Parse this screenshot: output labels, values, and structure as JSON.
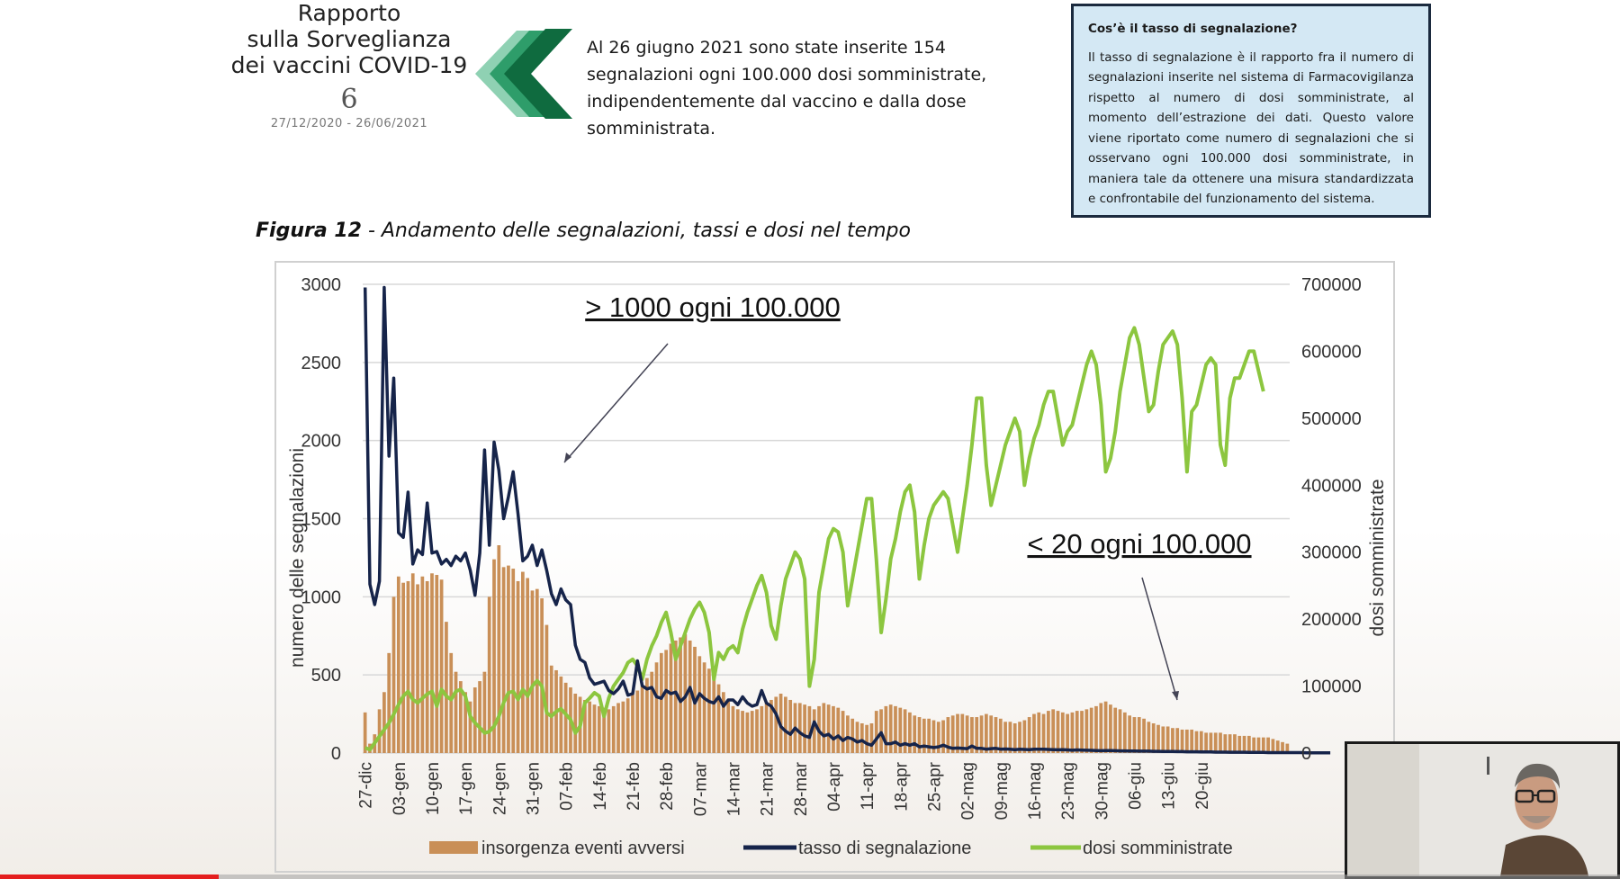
{
  "logo": {
    "line1": "Rapporto",
    "line2": "sulla Sorveglianza",
    "line3": "dei vaccini COVID-19",
    "number": "6",
    "dates": "27/12/2020 - 26/06/2021"
  },
  "headline": "Al 26 giugno 2021 sono state inserite 154 segnalazioni ogni 100.000 dosi somministrate, indipendentemente dal vaccino e dalla dose somministrata.",
  "infobox": {
    "title": "Cos’è il tasso di segnalazione?",
    "body": "Il tasso di segnalazione è il rapporto fra il numero di segnalazioni inserite nel sistema di Farmacovigilanza rispetto al numero di dosi somministrate, al momento dell’estrazione dei dati. Questo valore viene riportato come numero di segnalazioni che si osservano ogni 100.000 dosi somministrate, in maniera tale da ottenere una misura standardizzata e confrontabile del funzionamento del sistema."
  },
  "figure": {
    "label": "Figura 12",
    "title": " - Andamento delle segnalazioni, tassi e dosi nel tempo"
  },
  "video": {
    "progress": 0.135
  },
  "colors": {
    "bars": "#c98f57",
    "rate": "#16244a",
    "doses": "#8cc63f",
    "chevron_dark": "#0f6b3f",
    "chevron_mid": "#2e9d6a",
    "chevron_light": "#8fd1b3"
  },
  "chart_data": {
    "type": "bar",
    "title": "",
    "ylabel": "numero delle segnalazioni",
    "y2label": "dosi somministrate",
    "ylim": [
      0,
      3000
    ],
    "y2lim": [
      0,
      700000
    ],
    "yticks": [
      0,
      500,
      1000,
      1500,
      2000,
      2500,
      3000
    ],
    "y2ticks": [
      0,
      100000,
      200000,
      300000,
      400000,
      500000,
      600000,
      700000
    ],
    "grid": true,
    "legend_position": "bottom",
    "x_labels": [
      "27-dic",
      "03-gen",
      "10-gen",
      "17-gen",
      "24-gen",
      "31-gen",
      "07-feb",
      "14-feb",
      "21-feb",
      "28-feb",
      "07-mar",
      "14-mar",
      "21-mar",
      "28-mar",
      "04-apr",
      "11-apr",
      "18-apr",
      "25-apr",
      "02-mag",
      "09-mag",
      "16-mag",
      "23-mag",
      "30-mag",
      "06-giu",
      "13-giu",
      "20-giu"
    ],
    "annotations": [
      "> 1000 ogni 100.000",
      "< 20 ogni 100.000"
    ],
    "series": [
      {
        "name": "insorgenza eventi avversi",
        "type": "bar",
        "axis": "left",
        "values": [
          260,
          60,
          120,
          280,
          390,
          640,
          1000,
          1130,
          1090,
          1100,
          1150,
          1080,
          1130,
          1100,
          1150,
          1140,
          1110,
          840,
          640,
          520,
          460,
          390,
          330,
          420,
          460,
          520,
          1000,
          1240,
          1330,
          1190,
          1200,
          1180,
          1100,
          1160,
          1120,
          1040,
          1050,
          990,
          820,
          560,
          530,
          490,
          450,
          420,
          380,
          360,
          340,
          330,
          310,
          300,
          290,
          280,
          300,
          320,
          330,
          350,
          380,
          400,
          430,
          480,
          520,
          580,
          640,
          660,
          700,
          720,
          740,
          760,
          720,
          680,
          620,
          580,
          540,
          480,
          440,
          390,
          330,
          300,
          280,
          270,
          260,
          270,
          280,
          300,
          320,
          340,
          360,
          380,
          360,
          340,
          320,
          320,
          310,
          300,
          280,
          300,
          320,
          310,
          300,
          290,
          270,
          240,
          220,
          200,
          190,
          180,
          190,
          270,
          280,
          300,
          310,
          300,
          290,
          280,
          260,
          240,
          230,
          220,
          220,
          210,
          200,
          210,
          230,
          240,
          250,
          250,
          240,
          230,
          230,
          240,
          250,
          240,
          230,
          220,
          200,
          200,
          190,
          200,
          210,
          230,
          250,
          260,
          250,
          270,
          280,
          270,
          260,
          250,
          260,
          270,
          270,
          280,
          290,
          300,
          320,
          330,
          310,
          290,
          280,
          260,
          240,
          230,
          230,
          220,
          200,
          190,
          180,
          170,
          170,
          160,
          160,
          150,
          150,
          150,
          140,
          140,
          130,
          130,
          130,
          130,
          120,
          120,
          120,
          110,
          110,
          110,
          100,
          100,
          100,
          100,
          90,
          80,
          70,
          60
        ]
      },
      {
        "name": "tasso di segnalazione",
        "type": "line",
        "axis": "left",
        "values": [
          2980,
          1080,
          950,
          1100,
          2980,
          1900,
          2400,
          1410,
          1380,
          1670,
          1210,
          1300,
          1270,
          1600,
          1280,
          1290,
          1210,
          1240,
          1200,
          1260,
          1230,
          1280,
          1170,
          1010,
          1280,
          1940,
          1330,
          1990,
          1810,
          1500,
          1640,
          1800,
          1530,
          1230,
          1260,
          1330,
          1200,
          1300,
          1170,
          1020,
          950,
          1050,
          980,
          950,
          690,
          600,
          580,
          480,
          440,
          450,
          460,
          400,
          380,
          410,
          460,
          370,
          380,
          590,
          430,
          410,
          420,
          360,
          350,
          400,
          380,
          390,
          330,
          360,
          420,
          320,
          380,
          350,
          330,
          320,
          360,
          300,
          340,
          340,
          310,
          360,
          320,
          300,
          310,
          400,
          320,
          300,
          250,
          170,
          140,
          120,
          160,
          130,
          110,
          100,
          200,
          140,
          110,
          120,
          90,
          110,
          80,
          100,
          90,
          70,
          80,
          60,
          50,
          90,
          130,
          60,
          60,
          70,
          50,
          60,
          50,
          60,
          40,
          45,
          40,
          35,
          40,
          50,
          38,
          30,
          32,
          30,
          28,
          45,
          30,
          30,
          25,
          28,
          30,
          25,
          26,
          24,
          22,
          25,
          23,
          22,
          24,
          25,
          24,
          23,
          22,
          21,
          22,
          20,
          18,
          20,
          19,
          18,
          17,
          16,
          15,
          16,
          16,
          15,
          14,
          14,
          13,
          13,
          12,
          12,
          12,
          11,
          11,
          10,
          10,
          10,
          9,
          9,
          8,
          8,
          8,
          7,
          7,
          7,
          6,
          6,
          6,
          5,
          5,
          5,
          5,
          4,
          4,
          4,
          4,
          3,
          3,
          3,
          3,
          3,
          3,
          3,
          3,
          2,
          2,
          2,
          2,
          2,
          2
        ]
      },
      {
        "name": "dosi somministrate",
        "type": "line",
        "axis": "right",
        "values": [
          8000,
          5000,
          15000,
          25000,
          35000,
          45000,
          58000,
          72000,
          85000,
          92000,
          80000,
          75000,
          82000,
          88000,
          92000,
          70000,
          95000,
          85000,
          80000,
          92000,
          95000,
          85000,
          55000,
          45000,
          38000,
          30000,
          32000,
          40000,
          55000,
          75000,
          90000,
          92000,
          80000,
          95000,
          85000,
          100000,
          108000,
          100000,
          60000,
          55000,
          62000,
          66000,
          58000,
          50000,
          30000,
          40000,
          75000,
          82000,
          90000,
          85000,
          55000,
          82000,
          100000,
          110000,
          120000,
          135000,
          140000,
          130000,
          110000,
          140000,
          160000,
          175000,
          195000,
          210000,
          180000,
          140000,
          160000,
          180000,
          200000,
          215000,
          225000,
          210000,
          180000,
          110000,
          150000,
          140000,
          155000,
          160000,
          150000,
          185000,
          210000,
          230000,
          250000,
          265000,
          240000,
          190000,
          170000,
          220000,
          260000,
          280000,
          300000,
          290000,
          260000,
          100000,
          140000,
          240000,
          280000,
          320000,
          335000,
          330000,
          300000,
          220000,
          260000,
          300000,
          340000,
          380000,
          380000,
          290000,
          180000,
          230000,
          290000,
          320000,
          360000,
          390000,
          400000,
          360000,
          260000,
          310000,
          350000,
          370000,
          380000,
          390000,
          380000,
          340000,
          300000,
          350000,
          400000,
          460000,
          530000,
          530000,
          430000,
          370000,
          400000,
          430000,
          460000,
          480000,
          500000,
          480000,
          400000,
          440000,
          470000,
          490000,
          520000,
          540000,
          540000,
          500000,
          460000,
          480000,
          490000,
          520000,
          550000,
          580000,
          600000,
          580000,
          520000,
          420000,
          440000,
          480000,
          540000,
          580000,
          620000,
          635000,
          610000,
          560000,
          510000,
          520000,
          570000,
          610000,
          620000,
          630000,
          610000,
          530000,
          420000,
          510000,
          520000,
          550000,
          580000,
          590000,
          580000,
          460000,
          430000,
          530000,
          560000,
          560000,
          580000,
          600000,
          600000,
          570000,
          540000
        ]
      }
    ]
  }
}
